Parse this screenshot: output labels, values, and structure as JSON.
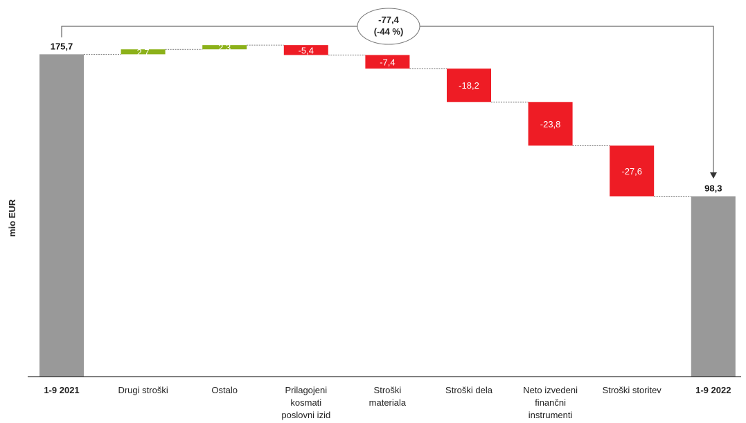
{
  "chart_data": {
    "type": "waterfall",
    "ylabel": "mio EUR",
    "categories": [
      {
        "label": "1-9 2021",
        "bold": true
      },
      {
        "label": "Drugi stroški"
      },
      {
        "label": "Ostalo"
      },
      {
        "label": "Prilagojeni kosmati poslovni izid"
      },
      {
        "label": "Stroški materiala"
      },
      {
        "label": "Stroški dela"
      },
      {
        "label": "Neto izvedeni finančni instrumenti"
      },
      {
        "label": "Stroški storitev"
      },
      {
        "label": "1-9 2022",
        "bold": true
      }
    ],
    "bars": [
      {
        "kind": "total",
        "value": 175.7,
        "label": "175,7"
      },
      {
        "kind": "delta",
        "value": 2.7,
        "label": "2,7"
      },
      {
        "kind": "delta",
        "value": 2.3,
        "label": "2,3"
      },
      {
        "kind": "delta",
        "value": -5.4,
        "label": "-5,4"
      },
      {
        "kind": "delta",
        "value": -7.4,
        "label": "-7,4"
      },
      {
        "kind": "delta",
        "value": -18.2,
        "label": "-18,2"
      },
      {
        "kind": "delta",
        "value": -23.8,
        "label": "-23,8"
      },
      {
        "kind": "delta",
        "value": -27.6,
        "label": "-27,6"
      },
      {
        "kind": "total",
        "value": 98.3,
        "label": "98,3"
      }
    ],
    "change_callout": {
      "value": "-77,4",
      "percent": "(-44 %)"
    },
    "colors": {
      "total": "#999999",
      "increase": "#8cb11a",
      "decrease": "#ee1c25"
    }
  }
}
